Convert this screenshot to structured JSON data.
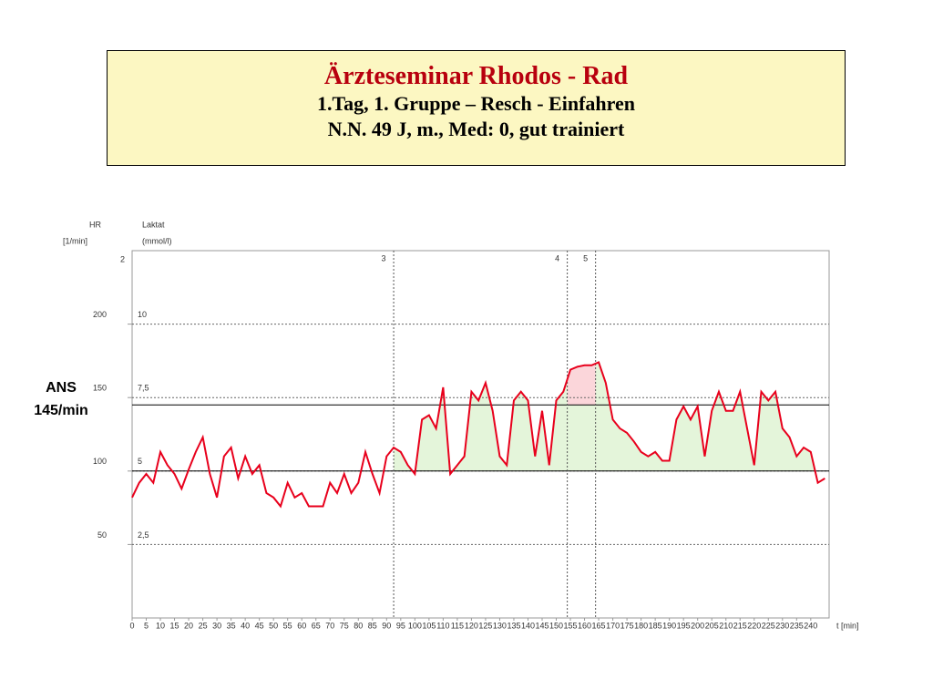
{
  "header": {
    "title": "Ärzteseminar Rhodos - Rad",
    "subtitle": "1.Tag, 1. Gruppe – Resch - Einfahren",
    "subtitle2": "N.N. 49 J, m.,  Med: 0, gut trainiert"
  },
  "chart_data": {
    "type": "line",
    "y_label": "HR",
    "y_unit": "[1/min]",
    "y2_label": "Laktat",
    "y2_unit": "(mmol/l)",
    "x_label": "t [min]",
    "corner_label": "2",
    "xlim": [
      0,
      246.5
    ],
    "xticks": [
      0,
      5,
      10,
      15,
      20,
      25,
      30,
      35,
      40,
      45,
      50,
      55,
      60,
      65,
      70,
      75,
      80,
      85,
      90,
      95,
      100,
      105,
      110,
      115,
      120,
      125,
      130,
      135,
      140,
      145,
      150,
      155,
      160,
      165,
      170,
      175,
      180,
      185,
      190,
      195,
      200,
      205,
      210,
      215,
      220,
      225,
      230,
      235,
      240
    ],
    "ylim": [
      0,
      250
    ],
    "yticks": [
      50,
      100,
      150,
      200
    ],
    "y2lim": [
      0,
      12.5
    ],
    "y2ticks": [
      {
        "value": 2.5,
        "label": "2,5"
      },
      5,
      {
        "value": 7.5,
        "label": "7,5"
      },
      10
    ],
    "y2_reference": 5,
    "threshold": {
      "value": 145,
      "label": [
        "ANS",
        "145/min"
      ],
      "color": "#fbd6da"
    },
    "fill_color": "#e4f5da",
    "markers": [
      {
        "x": 92.5,
        "label": "3"
      },
      {
        "x": 153.9,
        "label": "4"
      },
      {
        "x": 163.9,
        "label": "5"
      }
    ],
    "x": [
      0,
      2.5,
      5,
      7.5,
      10,
      12.5,
      15,
      17.5,
      20,
      22.5,
      25,
      27.5,
      30,
      32.5,
      35,
      37.5,
      40,
      42.5,
      45,
      47.5,
      50,
      52.5,
      55,
      57.5,
      60,
      62.5,
      65,
      67.5,
      70,
      72.5,
      75,
      77.5,
      80,
      82.5,
      85,
      87.5,
      90,
      92.5,
      95,
      97.5,
      100,
      102.5,
      105,
      107.5,
      110,
      112.5,
      115,
      117.5,
      120,
      122.5,
      125,
      127.5,
      130,
      132.5,
      135,
      137.5,
      140,
      142.5,
      145,
      147.5,
      150,
      152.5,
      155,
      157.5,
      160,
      162.5,
      165,
      167.5,
      170,
      172.5,
      175,
      177.5,
      180,
      182.5,
      185,
      187.5,
      190,
      192.5,
      195,
      197.5,
      200,
      202.5,
      205,
      207.5,
      210,
      212.5,
      215,
      217.5,
      220,
      222.5,
      225,
      227.5,
      230,
      232.5,
      235,
      237.5,
      240,
      242.5,
      245
    ],
    "series": [
      {
        "name": "HR",
        "color": "#e8001c",
        "values": [
          82,
          92,
          98,
          92,
          113,
          104,
          98,
          88,
          101,
          113,
          123,
          98,
          82,
          110,
          116,
          95,
          110,
          98,
          104,
          85,
          82,
          76,
          92,
          82,
          85,
          76,
          76,
          76,
          92,
          85,
          98,
          85,
          92,
          113,
          98,
          85,
          110,
          116,
          113,
          104,
          98,
          135,
          138,
          129,
          157,
          98,
          104,
          110,
          154,
          148,
          160,
          141,
          110,
          104,
          148,
          154,
          148,
          110,
          141,
          104,
          148,
          154,
          169,
          171,
          172,
          172,
          174,
          160,
          135,
          129,
          126,
          120,
          113,
          110,
          113,
          107,
          107,
          135,
          144,
          135,
          144,
          110,
          141,
          154,
          141,
          141,
          154,
          129,
          104,
          154,
          148,
          154,
          129,
          123,
          110,
          116,
          113,
          92,
          95
        ]
      }
    ]
  }
}
